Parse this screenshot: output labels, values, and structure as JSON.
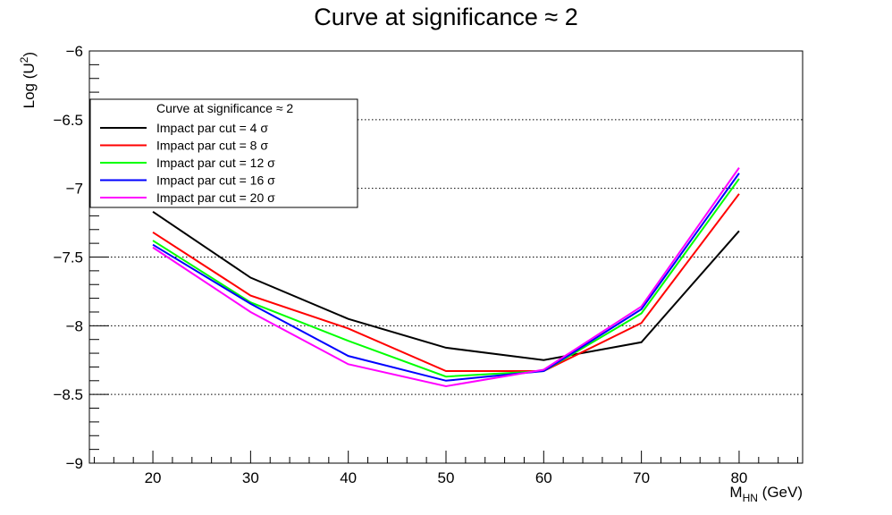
{
  "chart_data": {
    "type": "line",
    "title": "Curve at significance ≈ 2",
    "xlabel_main": "M",
    "xlabel_sub": "HN",
    "xlabel_unit": " (GeV)",
    "ylabel_main": "Log (U",
    "ylabel_sup": "2",
    "ylabel_close": ")",
    "xlim": [
      13.5,
      86.5
    ],
    "ylim": [
      -9,
      -6
    ],
    "x_ticks": [
      20,
      30,
      40,
      50,
      60,
      70,
      80
    ],
    "x_tick_labels": [
      "20",
      "30",
      "40",
      "50",
      "60",
      "70",
      "80"
    ],
    "y_ticks": [
      -9,
      -8.5,
      -8,
      -7.5,
      -7,
      -6.5,
      -6
    ],
    "y_tick_labels": [
      "−9",
      "−8.5",
      "−8",
      "−7.5",
      "−7",
      "−6.5",
      "−6"
    ],
    "grid_y": true,
    "legend": {
      "title": "Curve at significance ≈ 2",
      "placement": "top-left"
    },
    "x": [
      20,
      30,
      40,
      50,
      60,
      70,
      80
    ],
    "series": [
      {
        "name": "Impact par cut = 4 σ",
        "color": "#000000",
        "values": [
          -7.17,
          -7.65,
          -7.95,
          -8.16,
          -8.25,
          -8.12,
          -7.31
        ]
      },
      {
        "name": "Impact par cut = 8 σ",
        "color": "#ff0000",
        "values": [
          -7.32,
          -7.78,
          -8.02,
          -8.33,
          -8.33,
          -7.98,
          -7.04
        ]
      },
      {
        "name": "Impact par cut = 12 σ",
        "color": "#00ff00",
        "values": [
          -7.38,
          -7.83,
          -8.11,
          -8.37,
          -8.33,
          -7.91,
          -6.93
        ]
      },
      {
        "name": "Impact par cut = 16 σ",
        "color": "#0000ff",
        "values": [
          -7.41,
          -7.84,
          -8.22,
          -8.4,
          -8.33,
          -7.88,
          -6.89
        ]
      },
      {
        "name": "Impact par cut = 20 σ",
        "color": "#ff00ff",
        "values": [
          -7.43,
          -7.9,
          -8.28,
          -8.44,
          -8.32,
          -7.86,
          -6.85
        ]
      }
    ]
  }
}
